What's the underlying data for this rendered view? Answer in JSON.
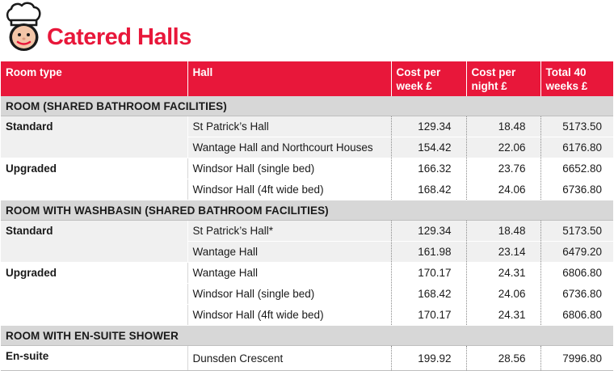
{
  "title": "Catered Halls",
  "icon": "chef-face-icon",
  "brand_color": "#e8173a",
  "headers": {
    "room_type": "Room type",
    "hall": "Hall",
    "cost_week_1": "Cost per",
    "cost_week_2": "week £",
    "cost_night_1": "Cost per",
    "cost_night_2": "night £",
    "total_1": "Total 40",
    "total_2": "weeks £"
  },
  "sections": [
    {
      "label": "ROOM (SHARED BATHROOM FACILITIES)"
    },
    {
      "label": "ROOM WITH WASHBASIN (SHARED BATHROOM FACILITIES)"
    },
    {
      "label": "ROOM WITH EN-SUITE SHOWER"
    }
  ],
  "rows": [
    {
      "type": "Standard",
      "hall": "St Patrick’s Hall",
      "week": "129.34",
      "night": "18.48",
      "total": "5173.50"
    },
    {
      "type": "",
      "hall": "Wantage Hall and Northcourt Houses",
      "week": "154.42",
      "night": "22.06",
      "total": "6176.80"
    },
    {
      "type": "Upgraded",
      "hall": "Windsor Hall (single bed)",
      "week": "166.32",
      "night": "23.76",
      "total": "6652.80"
    },
    {
      "type": "",
      "hall": "Windsor Hall (4ft wide bed)",
      "week": "168.42",
      "night": "24.06",
      "total": "6736.80"
    },
    {
      "type": "Standard",
      "hall": "St Patrick’s Hall*",
      "week": "129.34",
      "night": "18.48",
      "total": "5173.50"
    },
    {
      "type": "",
      "hall": "Wantage Hall",
      "week": "161.98",
      "night": "23.14",
      "total": "6479.20"
    },
    {
      "type": "Upgraded",
      "hall": "Wantage Hall",
      "week": "170.17",
      "night": "24.31",
      "total": "6806.80"
    },
    {
      "type": "",
      "hall": "Windsor Hall (single bed)",
      "week": "168.42",
      "night": "24.06",
      "total": "6736.80"
    },
    {
      "type": "",
      "hall": "Windsor Hall (4ft wide bed)",
      "week": "170.17",
      "night": "24.31",
      "total": "6806.80"
    },
    {
      "type": "En-suite",
      "hall": "Dunsden Crescent",
      "week": "199.92",
      "night": "28.56",
      "total": "7996.80"
    }
  ]
}
